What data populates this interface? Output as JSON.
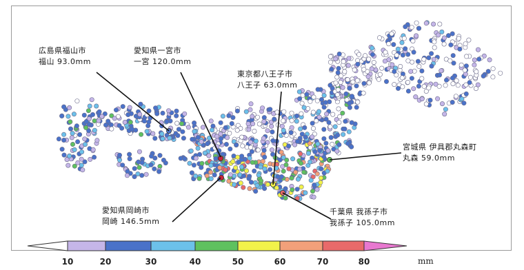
{
  "callouts": [
    {
      "id": "fukuyama",
      "line1": "広島県福山市",
      "line2": "福山  93.0mm"
    },
    {
      "id": "ichinomiya",
      "line1": "愛知県一宮市",
      "line2": "一宮  120.0mm"
    },
    {
      "id": "hachioji",
      "line1": "東京都八王子市",
      "line2": "八王子  63.0mm"
    },
    {
      "id": "marumori",
      "line1": "宮城県  伊具郡丸森町",
      "line2": "丸森  59.0mm"
    },
    {
      "id": "okazaki",
      "line1": "愛知県岡崎市",
      "line2": "岡崎  146.5mm"
    },
    {
      "id": "abiko",
      "line1": "千葉県  我孫子市",
      "line2": "我孫子  105.0mm"
    }
  ],
  "legend": {
    "ticks": [
      "10",
      "20",
      "30",
      "40",
      "50",
      "60",
      "70",
      "80"
    ],
    "unit": "mm",
    "colors": [
      "#c5b6e8",
      "#4a72c9",
      "#6cc1ea",
      "#5fc15f",
      "#f2f24a",
      "#f2a07a",
      "#e86a6a",
      "#c8233a",
      "#e878d0"
    ]
  },
  "dot_colors": {
    "none": "#ffffff",
    "light_purple": "#c5b6e8",
    "blue": "#4a72c9",
    "cyan": "#6cc1ea",
    "green": "#5fc15f",
    "yellow": "#f2f24a",
    "orange": "#f2a07a",
    "red": "#e86a6a",
    "dark_red": "#c8233a"
  }
}
